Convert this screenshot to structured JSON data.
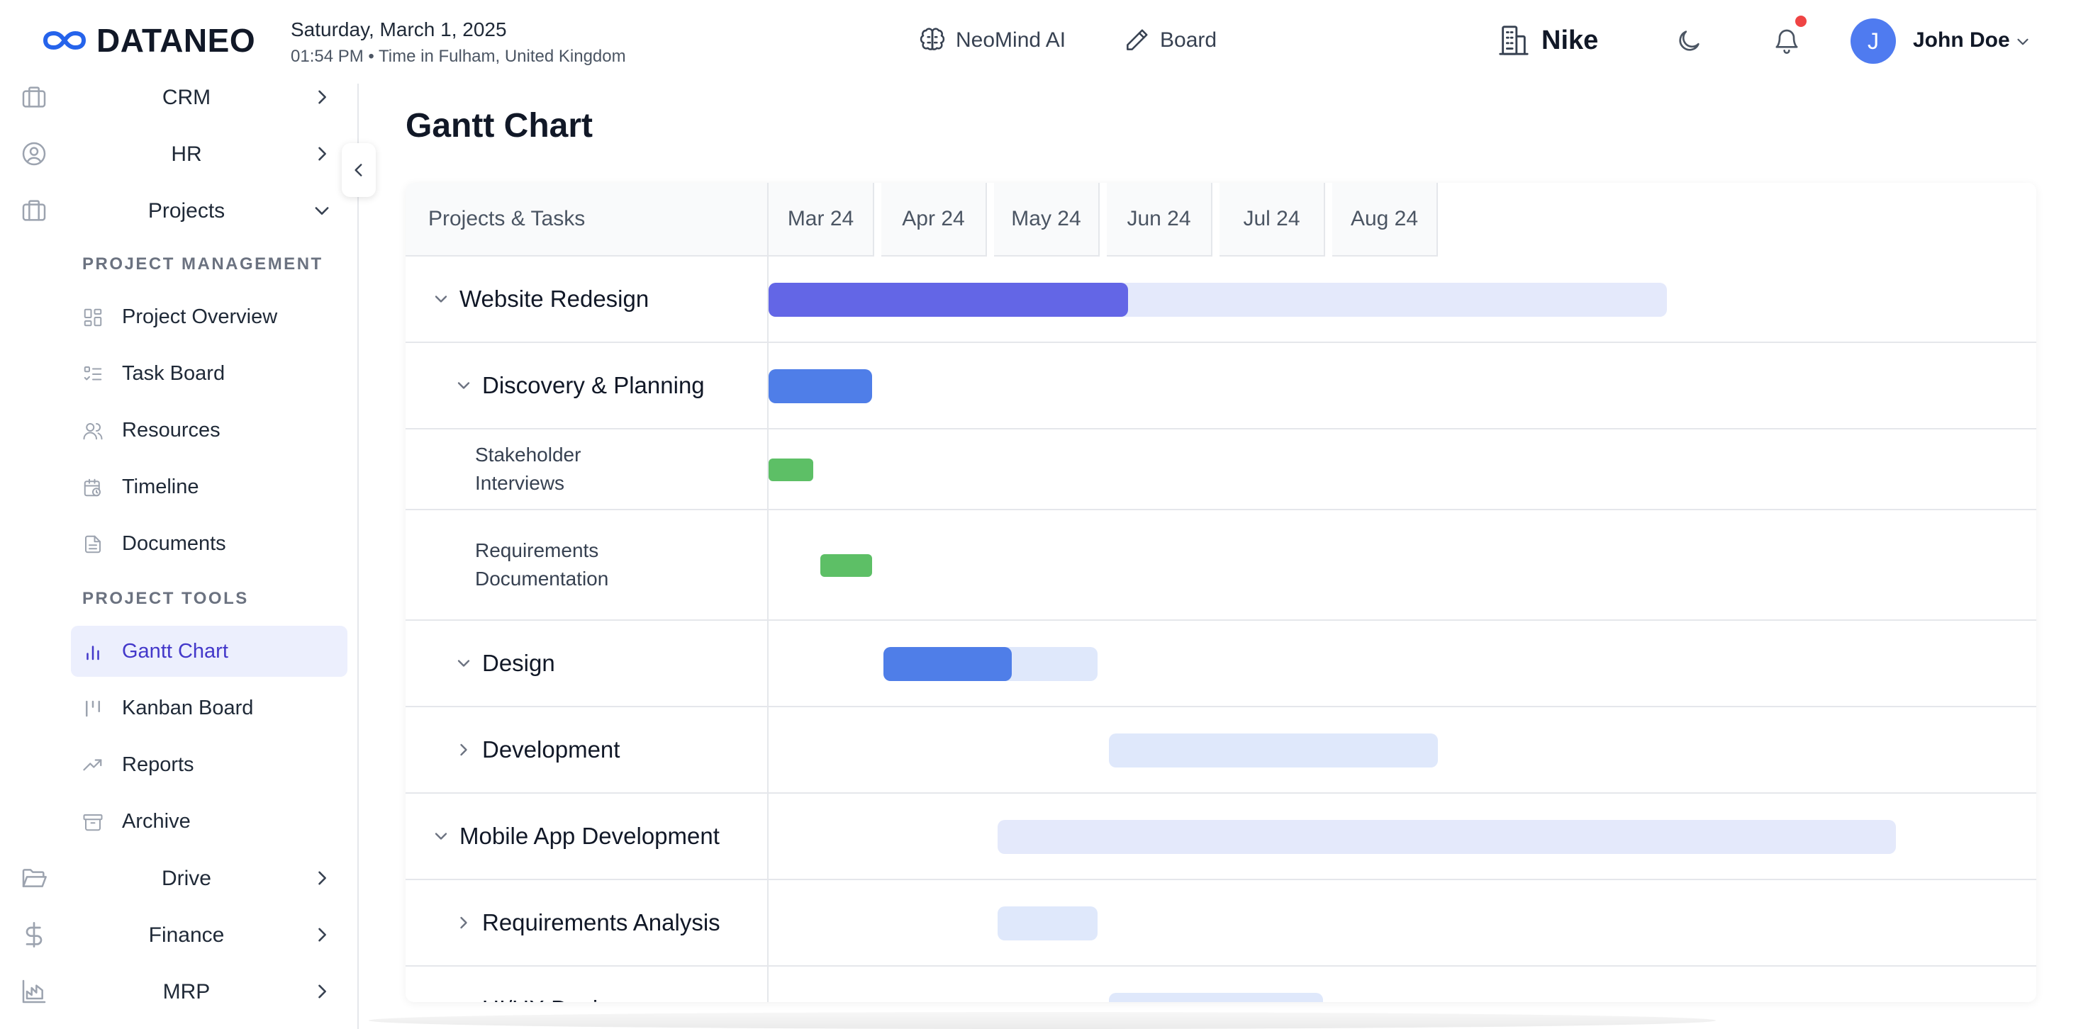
{
  "header": {
    "logo_text": "DATANEO",
    "date": "Saturday, March 1, 2025",
    "time": "01:54 PM • Time in Fulham, United Kingdom",
    "nav": [
      {
        "label": "NeoMind AI",
        "icon": "brain-icon"
      },
      {
        "label": "Board",
        "icon": "pencil-icon"
      }
    ],
    "company": "Nike",
    "user": {
      "initial": "J",
      "name": "John Doe"
    },
    "colors": {
      "avatar": "#4f7bf0",
      "notification": "#ef4444",
      "logo": "#2563eb"
    }
  },
  "sidebar": {
    "modules_top": [
      {
        "label": "CRM",
        "icon": "briefcase-icon"
      },
      {
        "label": "HR",
        "icon": "user-circle-icon"
      },
      {
        "label": "Projects",
        "icon": "briefcase-icon"
      }
    ],
    "sections": [
      {
        "title": "PROJECT MANAGEMENT",
        "items": [
          {
            "label": "Project Overview",
            "icon": "grid-icon"
          },
          {
            "label": "Task Board",
            "icon": "list-check-icon"
          },
          {
            "label": "Resources",
            "icon": "users-icon"
          },
          {
            "label": "Timeline",
            "icon": "calendar-clock-icon"
          },
          {
            "label": "Documents",
            "icon": "document-icon"
          }
        ]
      },
      {
        "title": "PROJECT TOOLS",
        "items": [
          {
            "label": "Gantt Chart",
            "icon": "bar-chart-icon",
            "active": true
          },
          {
            "label": "Kanban Board",
            "icon": "kanban-icon"
          },
          {
            "label": "Reports",
            "icon": "trending-up-icon"
          },
          {
            "label": "Archive",
            "icon": "archive-icon"
          }
        ]
      }
    ],
    "modules_bottom": [
      {
        "label": "Drive",
        "icon": "folder-open-icon"
      },
      {
        "label": "Finance",
        "icon": "dollar-icon"
      },
      {
        "label": "MRP",
        "icon": "factory-icon"
      }
    ]
  },
  "main": {
    "title": "Gantt Chart",
    "gantt": {
      "task_header": "Projects & Tasks",
      "months": [
        "Mar 24",
        "Apr 24",
        "May 24",
        "Jun 24",
        "Jul 24",
        "Aug 24"
      ],
      "rows": [
        {
          "label": "Website Redesign",
          "level": 0,
          "expanded": true,
          "start": "2024-03-01",
          "end": "2024-10-30",
          "progress": 0.4,
          "color": "#6366e6"
        },
        {
          "label": "Discovery & Planning",
          "level": 1,
          "expanded": true,
          "start": "2024-03-01",
          "end": "2024-03-29",
          "progress": 1.0,
          "color": "#4f7ee8"
        },
        {
          "label": "Stakeholder Interviews",
          "level": 2,
          "start": "2024-03-01",
          "end": "2024-03-13",
          "progress": 1.0,
          "color": "#5dbf66"
        },
        {
          "label": "Requirements Documentation",
          "level": 2,
          "start": "2024-03-15",
          "end": "2024-03-29",
          "progress": 1.0,
          "color": "#5dbf66"
        },
        {
          "label": "Design",
          "level": 1,
          "expanded": true,
          "start": "2024-04-01",
          "end": "2024-05-29",
          "progress": 0.6,
          "color": "#4f7ee8"
        },
        {
          "label": "Development",
          "level": 1,
          "expanded": false,
          "start": "2024-06-01",
          "end": "2024-08-29",
          "progress": 0,
          "color": "#dfe8fb"
        },
        {
          "label": "Mobile App Development",
          "level": 0,
          "expanded": true,
          "start": "2024-05-02",
          "end": "2024-12-31",
          "progress": 0,
          "color": "#e4e9fb"
        },
        {
          "label": "Requirements Analysis",
          "level": 1,
          "expanded": false,
          "start": "2024-05-02",
          "end": "2024-05-29",
          "progress": 0,
          "color": "#dfe8fb"
        },
        {
          "label": "UI/UX Design",
          "level": 1,
          "expanded": false,
          "start": "2024-06-01",
          "end": "2024-07-29",
          "progress": 0,
          "color": "#dfe8fb"
        }
      ]
    }
  }
}
